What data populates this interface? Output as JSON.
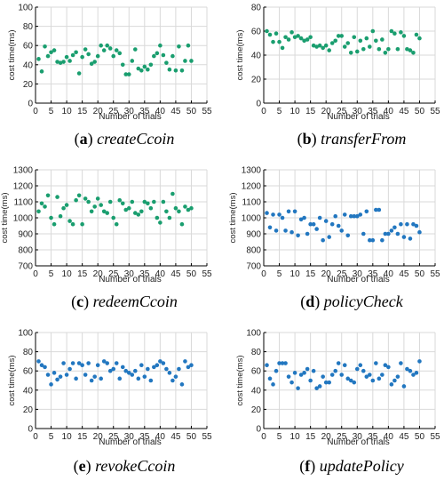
{
  "chart_data": [
    {
      "type": "scatter",
      "caption_letter": "a",
      "caption_name": "createCcoin",
      "xlabel": "Number of trials",
      "ylabel": "cost time(ms)",
      "xlim": [
        0,
        55
      ],
      "ylim": [
        0,
        100
      ],
      "xticks": [
        0,
        5,
        10,
        15,
        20,
        25,
        30,
        35,
        40,
        45,
        50,
        55
      ],
      "yticks": [
        0,
        20,
        40,
        60,
        80,
        100
      ],
      "grid": true,
      "color": "#1a9e6f",
      "x": [
        1,
        2,
        3,
        4,
        5,
        6,
        7,
        8,
        9,
        10,
        11,
        12,
        13,
        14,
        15,
        16,
        17,
        18,
        19,
        20,
        21,
        22,
        23,
        24,
        25,
        26,
        27,
        28,
        29,
        30,
        31,
        32,
        33,
        34,
        35,
        36,
        37,
        38,
        39,
        40,
        41,
        42,
        43,
        44,
        45,
        46,
        47,
        48,
        49,
        50
      ],
      "y": [
        46,
        33,
        59,
        49,
        53,
        55,
        43,
        42,
        43,
        48,
        44,
        50,
        53,
        31,
        48,
        56,
        51,
        41,
        43,
        49,
        60,
        55,
        60,
        57,
        49,
        55,
        52,
        40,
        30,
        30,
        44,
        56,
        36,
        34,
        38,
        35,
        40,
        49,
        52,
        60,
        50,
        42,
        35,
        49,
        34,
        59,
        34,
        44,
        60,
        44
      ]
    },
    {
      "type": "scatter",
      "caption_letter": "b",
      "caption_name": "transferFrom",
      "xlabel": "Number of trials",
      "ylabel": "cost time(ms)",
      "xlim": [
        0,
        55
      ],
      "ylim": [
        0,
        80
      ],
      "xticks": [
        0,
        5,
        10,
        15,
        20,
        25,
        30,
        35,
        40,
        45,
        50,
        55
      ],
      "yticks": [
        0,
        20,
        40,
        60,
        80
      ],
      "grid": true,
      "color": "#1a9e6f",
      "x": [
        1,
        2,
        3,
        4,
        5,
        6,
        7,
        8,
        9,
        10,
        11,
        12,
        13,
        14,
        15,
        16,
        17,
        18,
        19,
        20,
        21,
        22,
        23,
        24,
        25,
        26,
        27,
        28,
        29,
        30,
        31,
        32,
        33,
        34,
        35,
        36,
        37,
        38,
        39,
        40,
        41,
        42,
        43,
        44,
        45,
        46,
        47,
        48,
        49,
        50
      ],
      "y": [
        60,
        57,
        51,
        58,
        51,
        46,
        55,
        53,
        59,
        55,
        56,
        54,
        52,
        53,
        55,
        48,
        47,
        48,
        46,
        48,
        44,
        50,
        52,
        56,
        56,
        47,
        50,
        42,
        55,
        43,
        52,
        45,
        54,
        47,
        60,
        52,
        45,
        53,
        42,
        45,
        60,
        58,
        45,
        59,
        56,
        45,
        44,
        42,
        57,
        54
      ]
    },
    {
      "type": "scatter",
      "caption_letter": "c",
      "caption_name": "redeemCcoin",
      "xlabel": "Number of trials",
      "ylabel": "cost time(ms)",
      "xlim": [
        0,
        55
      ],
      "ylim": [
        700,
        1300
      ],
      "xticks": [
        0,
        5,
        10,
        15,
        20,
        25,
        30,
        35,
        40,
        45,
        50,
        55
      ],
      "yticks": [
        700,
        800,
        900,
        1000,
        1100,
        1200,
        1300
      ],
      "grid": true,
      "color": "#1a9e6f",
      "x": [
        1,
        2,
        3,
        4,
        5,
        6,
        7,
        8,
        9,
        10,
        11,
        12,
        13,
        14,
        15,
        16,
        17,
        18,
        19,
        20,
        21,
        22,
        23,
        24,
        25,
        26,
        27,
        28,
        29,
        30,
        31,
        32,
        33,
        34,
        35,
        36,
        37,
        38,
        39,
        40,
        41,
        42,
        43,
        44,
        45,
        46,
        47,
        48,
        49,
        50
      ],
      "y": [
        1040,
        1090,
        1070,
        1140,
        1000,
        960,
        1130,
        1010,
        1060,
        1080,
        980,
        960,
        1110,
        1140,
        960,
        1120,
        1100,
        1040,
        1070,
        1120,
        1080,
        1040,
        1030,
        1100,
        1000,
        960,
        1110,
        1090,
        1050,
        1060,
        1100,
        1030,
        1020,
        1040,
        1100,
        1090,
        1060,
        1100,
        1000,
        970,
        1100,
        1040,
        1000,
        1150,
        1060,
        1040,
        960,
        1070,
        1050,
        1060
      ]
    },
    {
      "type": "scatter",
      "caption_letter": "d",
      "caption_name": "policyCheck",
      "xlabel": "Number of trials",
      "ylabel": "cost time(ms)",
      "xlim": [
        0,
        55
      ],
      "ylim": [
        700,
        1300
      ],
      "xticks": [
        0,
        5,
        10,
        15,
        20,
        25,
        30,
        35,
        40,
        45,
        50,
        55
      ],
      "yticks": [
        700,
        800,
        900,
        1000,
        1100,
        1200,
        1300
      ],
      "grid": true,
      "color": "#2277c0",
      "x": [
        1,
        2,
        3,
        4,
        5,
        6,
        7,
        8,
        9,
        10,
        11,
        12,
        13,
        14,
        15,
        16,
        17,
        18,
        19,
        20,
        21,
        22,
        23,
        24,
        25,
        26,
        27,
        28,
        29,
        30,
        31,
        32,
        33,
        34,
        35,
        36,
        37,
        38,
        39,
        40,
        41,
        42,
        43,
        44,
        45,
        46,
        47,
        48,
        49,
        50
      ],
      "y": [
        1030,
        940,
        1020,
        920,
        1020,
        1000,
        920,
        1040,
        910,
        1040,
        890,
        990,
        1000,
        900,
        960,
        960,
        930,
        1000,
        860,
        980,
        880,
        960,
        1010,
        950,
        920,
        1020,
        890,
        1010,
        1010,
        1010,
        1020,
        900,
        1040,
        860,
        860,
        1050,
        1050,
        860,
        900,
        900,
        920,
        940,
        900,
        960,
        880,
        960,
        870,
        960,
        950,
        910
      ]
    },
    {
      "type": "scatter",
      "caption_letter": "e",
      "caption_name": "revokeCcoin",
      "xlabel": "Number of trials",
      "ylabel": "cost time(ms)",
      "xlim": [
        0,
        55
      ],
      "ylim": [
        0,
        100
      ],
      "xticks": [
        0,
        5,
        10,
        15,
        20,
        25,
        30,
        35,
        40,
        45,
        50,
        55
      ],
      "yticks": [
        0,
        20,
        40,
        60,
        80,
        100
      ],
      "grid": true,
      "color": "#2277c0",
      "x": [
        1,
        2,
        3,
        4,
        5,
        6,
        7,
        8,
        9,
        10,
        11,
        12,
        13,
        14,
        15,
        16,
        17,
        18,
        19,
        20,
        21,
        22,
        23,
        24,
        25,
        26,
        27,
        28,
        29,
        30,
        31,
        32,
        33,
        34,
        35,
        36,
        37,
        38,
        39,
        40,
        41,
        42,
        43,
        44,
        45,
        46,
        47,
        48,
        49,
        50
      ],
      "y": [
        70,
        66,
        64,
        56,
        46,
        58,
        51,
        54,
        68,
        56,
        62,
        68,
        52,
        68,
        66,
        56,
        68,
        50,
        54,
        66,
        52,
        70,
        68,
        60,
        62,
        68,
        52,
        64,
        60,
        58,
        56,
        60,
        52,
        66,
        54,
        62,
        50,
        64,
        66,
        70,
        68,
        62,
        58,
        50,
        54,
        62,
        46,
        70,
        64,
        66
      ]
    },
    {
      "type": "scatter",
      "caption_letter": "f",
      "caption_name": "updatePolicy",
      "xlabel": "Number of trials",
      "ylabel": "cost time(ms)",
      "xlim": [
        0,
        55
      ],
      "ylim": [
        0,
        100
      ],
      "xticks": [
        0,
        5,
        10,
        15,
        20,
        25,
        30,
        35,
        40,
        45,
        50,
        55
      ],
      "yticks": [
        0,
        20,
        40,
        60,
        80,
        100
      ],
      "grid": true,
      "color": "#2277c0",
      "x": [
        1,
        2,
        3,
        4,
        5,
        6,
        7,
        8,
        9,
        10,
        11,
        12,
        13,
        14,
        15,
        16,
        17,
        18,
        19,
        20,
        21,
        22,
        23,
        24,
        25,
        26,
        27,
        28,
        29,
        30,
        31,
        32,
        33,
        34,
        35,
        36,
        37,
        38,
        39,
        40,
        41,
        42,
        43,
        44,
        45,
        46,
        47,
        48,
        49,
        50
      ],
      "y": [
        66,
        52,
        46,
        60,
        68,
        68,
        68,
        54,
        48,
        58,
        42,
        56,
        58,
        62,
        50,
        60,
        42,
        44,
        54,
        48,
        48,
        56,
        60,
        68,
        56,
        66,
        52,
        50,
        48,
        62,
        66,
        60,
        54,
        56,
        50,
        68,
        52,
        56,
        66,
        64,
        46,
        50,
        54,
        68,
        44,
        62,
        60,
        56,
        58,
        70
      ]
    }
  ]
}
